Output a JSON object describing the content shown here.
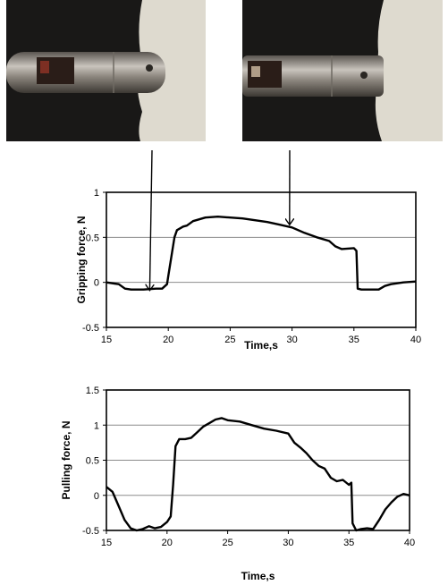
{
  "photos": [
    {
      "caption": "",
      "state": "probe approaching tissue"
    },
    {
      "caption": "",
      "state": "probe gripping tissue"
    }
  ],
  "colors": {
    "photo_background": "#1a1a1a",
    "tissue": "#dcd8cc",
    "probe_metal": "#9a948e",
    "line": "#000000",
    "grid": "#8c8c8c"
  },
  "chart_data": [
    {
      "type": "line",
      "title": "",
      "xlabel": "Time,s",
      "ylabel": "Gripping force, N",
      "xlim": [
        15,
        40
      ],
      "ylim": [
        -0.5,
        1
      ],
      "xticks": [
        "15",
        "20",
        "25",
        "30",
        "35",
        "40"
      ],
      "yticks": [
        "-0.5",
        "0",
        "0.5",
        "1"
      ],
      "grid": "horizontal",
      "series": [
        {
          "x": [
            15,
            16,
            16.5,
            17,
            18,
            19,
            19.5,
            19.9,
            20,
            20.5,
            20.7,
            21.2,
            21.5,
            22,
            23,
            24,
            25,
            26,
            27,
            28,
            29,
            30,
            31,
            32,
            33,
            33.5,
            34,
            35,
            35.2,
            35.3,
            35.6,
            36,
            37,
            37.5,
            38,
            39,
            40
          ],
          "y": [
            0,
            -0.02,
            -0.07,
            -0.08,
            -0.08,
            -0.07,
            -0.07,
            -0.02,
            0.07,
            0.5,
            0.58,
            0.62,
            0.63,
            0.68,
            0.72,
            0.73,
            0.72,
            0.71,
            0.69,
            0.67,
            0.64,
            0.61,
            0.55,
            0.5,
            0.46,
            0.4,
            0.37,
            0.38,
            0.35,
            -0.07,
            -0.08,
            -0.08,
            -0.08,
            -0.04,
            -0.02,
            0.0,
            0.01
          ]
        }
      ],
      "annotations": [
        {
          "type": "arrow",
          "from": "left photo",
          "to": {
            "x": 18.5,
            "y": -0.1
          }
        },
        {
          "type": "arrow",
          "from": "right photo",
          "to": {
            "x": 29.8,
            "y": 0.63
          }
        }
      ]
    },
    {
      "type": "line",
      "title": "",
      "xlabel": "Time,s",
      "ylabel": "Pulling force, N",
      "xlim": [
        15,
        40
      ],
      "ylim": [
        -0.5,
        1.5
      ],
      "xticks": [
        "15",
        "20",
        "25",
        "30",
        "35",
        "40"
      ],
      "yticks": [
        "-0.5",
        "0",
        "0.5",
        "1",
        "1.5"
      ],
      "grid": "horizontal",
      "series": [
        {
          "x": [
            15,
            15.5,
            16,
            16.5,
            17,
            17.5,
            18,
            18.5,
            19,
            19.5,
            20,
            20.3,
            20.5,
            20.7,
            21,
            21.5,
            22,
            22.5,
            23,
            23.5,
            24,
            24.5,
            25,
            26,
            27,
            28,
            29,
            30,
            30.5,
            31,
            31.5,
            32,
            32.5,
            33,
            33.5,
            34,
            34.5,
            35,
            35.2,
            35.3,
            35.6,
            36,
            36.5,
            37,
            37.5,
            38,
            38.5,
            39,
            39.5,
            40
          ],
          "y": [
            0.12,
            0.05,
            -0.15,
            -0.35,
            -0.47,
            -0.5,
            -0.48,
            -0.44,
            -0.47,
            -0.45,
            -0.38,
            -0.3,
            0.15,
            0.7,
            0.8,
            0.8,
            0.82,
            0.9,
            0.98,
            1.03,
            1.08,
            1.1,
            1.07,
            1.05,
            1.0,
            0.95,
            0.92,
            0.88,
            0.75,
            0.68,
            0.6,
            0.5,
            0.42,
            0.38,
            0.25,
            0.2,
            0.22,
            0.15,
            0.18,
            -0.4,
            -0.5,
            -0.48,
            -0.47,
            -0.48,
            -0.35,
            -0.2,
            -0.1,
            -0.02,
            0.02,
            0.0
          ]
        }
      ]
    }
  ]
}
